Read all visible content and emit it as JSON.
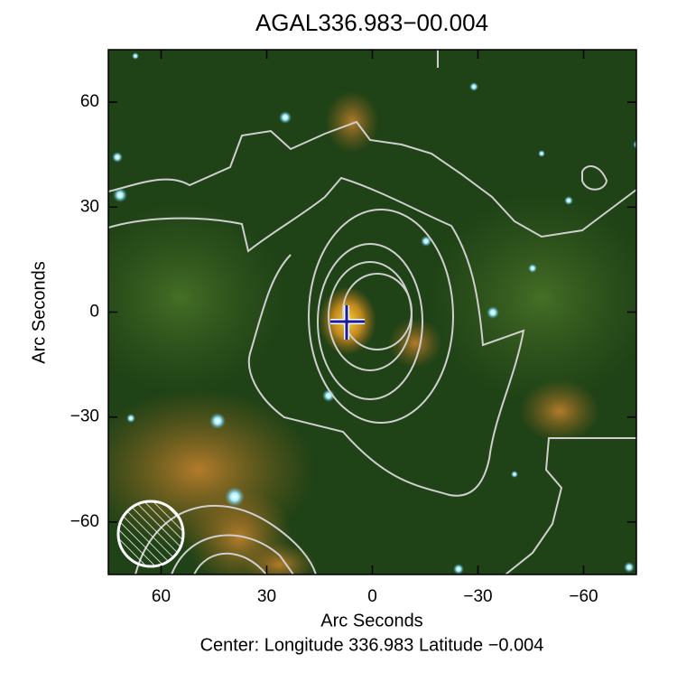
{
  "chart_data": {
    "type": "image",
    "title": "AGAL336.983−00.004",
    "xlabel": "Arc Seconds",
    "ylabel": "Arc Seconds",
    "caption": "Center:  Longitude 336.983 Latitude −0.004",
    "xlim": [
      75,
      -75
    ],
    "ylim": [
      -75,
      75
    ],
    "xticks": [
      60,
      30,
      0,
      {
        "value": -30,
        "label": "−30"
      },
      {
        "value": -60,
        "label": "−60"
      }
    ],
    "yticks": [
      {
        "value": -60,
        "label": "−60"
      },
      {
        "value": -30,
        "label": "−30"
      },
      0,
      30,
      60
    ]
  }
}
